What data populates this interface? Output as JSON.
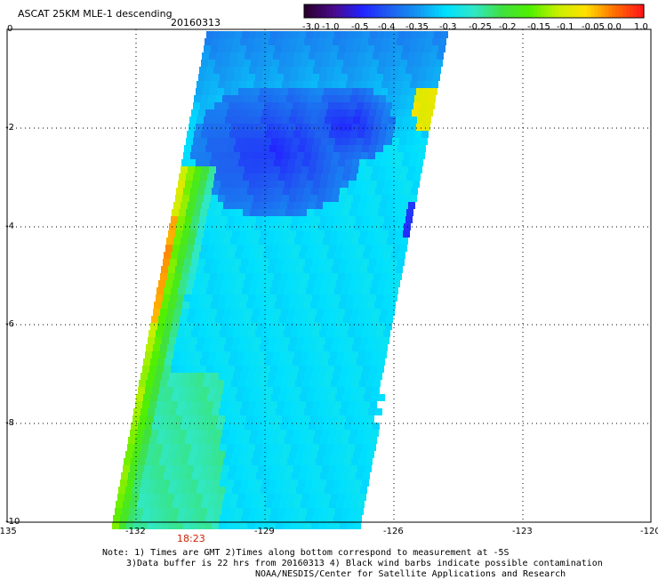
{
  "header": {
    "title": "ASCAT 25KM MLE-1 descending",
    "date": "20160313"
  },
  "colorbar": {
    "labels": [
      "-3.0",
      "-1.0",
      "-0.5",
      "-0.4",
      "-0.35",
      "-0.3",
      "-0.25",
      "-0.2",
      "-0.15",
      "-0.1",
      "-0.05",
      "0.0",
      "1.0"
    ],
    "colors": [
      "#2a0030",
      "#4a0a8a",
      "#2222ff",
      "#1f5ff0",
      "#1496f2",
      "#00e0ff",
      "#30e8c8",
      "#40e040",
      "#50f000",
      "#c8f000",
      "#ffe000",
      "#ff7000",
      "#ff1818"
    ]
  },
  "map": {
    "y_ticks": [
      "0",
      "-2",
      "-4",
      "-6",
      "-8",
      "-10"
    ],
    "x_ticks": [
      "-135",
      "-132",
      "-129",
      "-126",
      "-123",
      "-120"
    ],
    "time_label": "18:23",
    "time_color": "#cc2200"
  },
  "notes": {
    "line1": "Note: 1) Times are GMT 2)Times along bottom correspond to measurement at -5S",
    "line2": "3)Data buffer is 22 hrs from 20160313 4) Black wind barbs indicate possible contamination",
    "line3": "NOAA/NESDIS/Center for Satellite Applications and Research"
  }
}
